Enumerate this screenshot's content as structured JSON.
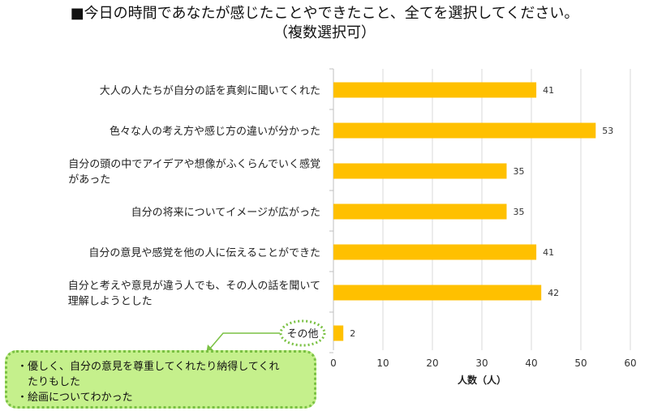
{
  "title_line1": "■今日の時間であなたが感じたことやできたこと、全てを選択してください。",
  "title_line2": "（複数選択可）",
  "chart_data": {
    "type": "bar",
    "orientation": "horizontal",
    "categories": [
      [
        "大人の人たちが自分の話を真剣に聞いてくれた"
      ],
      [
        "色々な人の考え方や感じ方の違いが分かった"
      ],
      [
        "自分の頭の中でアイデアや想像がふくらんでいく感覚",
        "があった"
      ],
      [
        "自分の将来についてイメージが広がった"
      ],
      [
        "自分の意見や感覚を他の人に伝えることができた"
      ],
      [
        "自分と考えや意見が違う人でも、その人の話を聞いて",
        "理解しようとした"
      ],
      [
        "その他"
      ]
    ],
    "values": [
      41,
      53,
      35,
      35,
      41,
      42,
      2
    ],
    "xlabel": "人数（人）",
    "xlim": [
      0,
      60
    ],
    "xticks": [
      0,
      10,
      20,
      30,
      40,
      50,
      60
    ],
    "grid": true,
    "bar_color": "#ffc000",
    "grid_color": "#d9d9d9",
    "data_labels": true
  },
  "callout": {
    "lines": [
      "・優しく、自分の意見を尊重してくれたり納得してくれ",
      "　たりもした",
      "・絵画についてわかった"
    ],
    "fill": "#c5f08c",
    "border": "#7ac143"
  }
}
